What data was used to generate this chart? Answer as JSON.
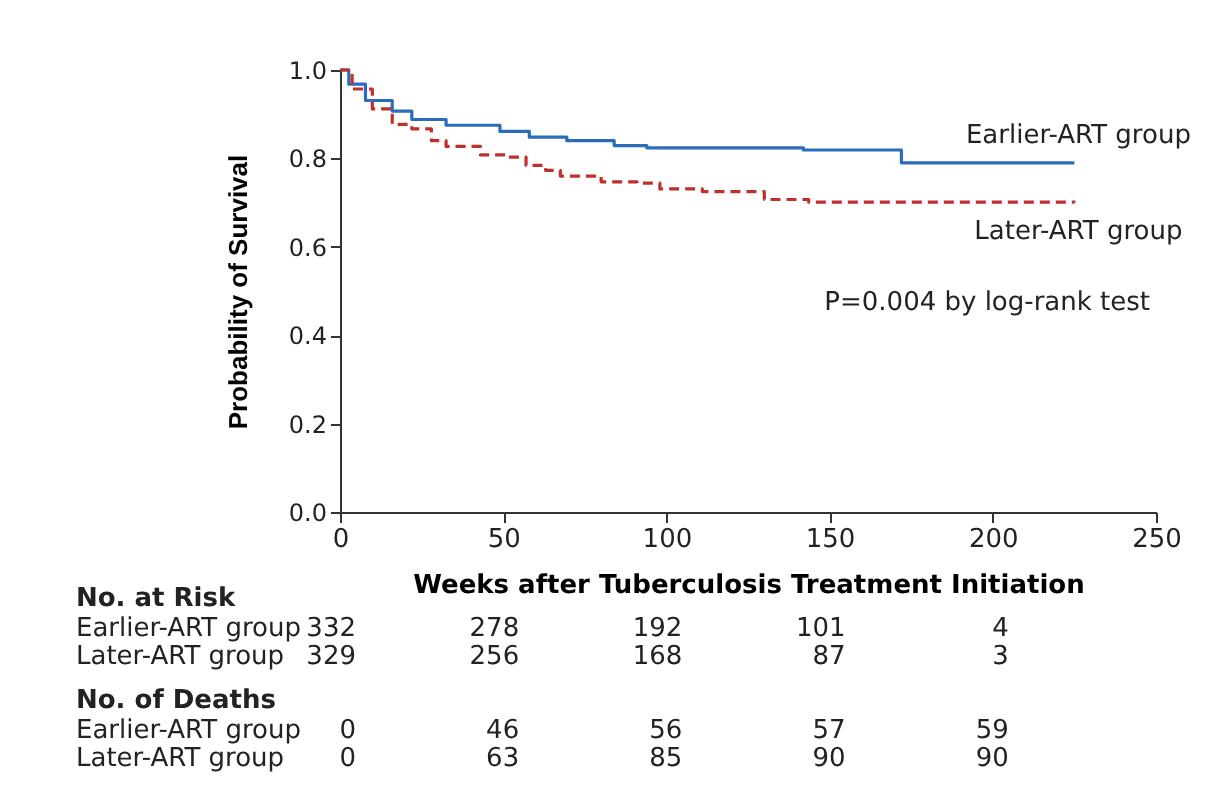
{
  "chart_data": {
    "type": "step",
    "xlabel": "Weeks after Tuberculosis Treatment Initiation",
    "ylabel": "Probability of Survival",
    "xlim": [
      0,
      250
    ],
    "xticks": [
      0,
      50,
      100,
      150,
      200,
      250
    ],
    "ylim": [
      0,
      1.0
    ],
    "yticks": [
      {
        "value": 0,
        "label": "0.0"
      },
      {
        "value": 0.2,
        "label": "0.2"
      },
      {
        "value": 0.4,
        "label": "0.4"
      },
      {
        "value": 0.6,
        "label": "0.6"
      },
      {
        "value": 0.8,
        "label": "0.8"
      },
      {
        "value": 1,
        "label": "1.0"
      }
    ],
    "series": [
      {
        "name": "Earlier-ART group",
        "color": "#2a6ebb",
        "line_style": "solid",
        "x": [
          0,
          2.7,
          7.8,
          16,
          22,
          32.5,
          49,
          58,
          69.5,
          84,
          94,
          142,
          172,
          225
        ],
        "values": [
          1.0,
          0.968,
          0.931,
          0.907,
          0.888,
          0.875,
          0.861,
          0.848,
          0.84,
          0.829,
          0.824,
          0.819,
          0.79,
          0.79
        ]
      },
      {
        "name": "Later-ART group",
        "color": "#c0302a",
        "line_style": "dashed",
        "x": [
          0,
          3.7,
          9.9,
          16,
          22,
          28,
          32.5,
          43,
          51,
          57,
          63,
          67.5,
          80,
          91,
          98,
          111,
          130,
          143.6,
          225
        ],
        "values": [
          1.0,
          0.957,
          0.912,
          0.877,
          0.867,
          0.84,
          0.827,
          0.808,
          0.803,
          0.784,
          0.773,
          0.76,
          0.747,
          0.744,
          0.731,
          0.725,
          0.707,
          0.701,
          0.7
        ]
      }
    ],
    "annotations": [
      "P=0.004 by log-rank test",
      "No. at Risk",
      "Earlier-ART group",
      "332",
      "278",
      "192",
      "101",
      "4",
      "Later-ART group",
      "329",
      "256",
      "168",
      "87",
      "3",
      "No. of Deaths",
      "Earlier-ART group",
      "0",
      "46",
      "56",
      "57",
      "59",
      "Later-ART group",
      "0",
      "63",
      "85",
      "90",
      "90"
    ]
  }
}
